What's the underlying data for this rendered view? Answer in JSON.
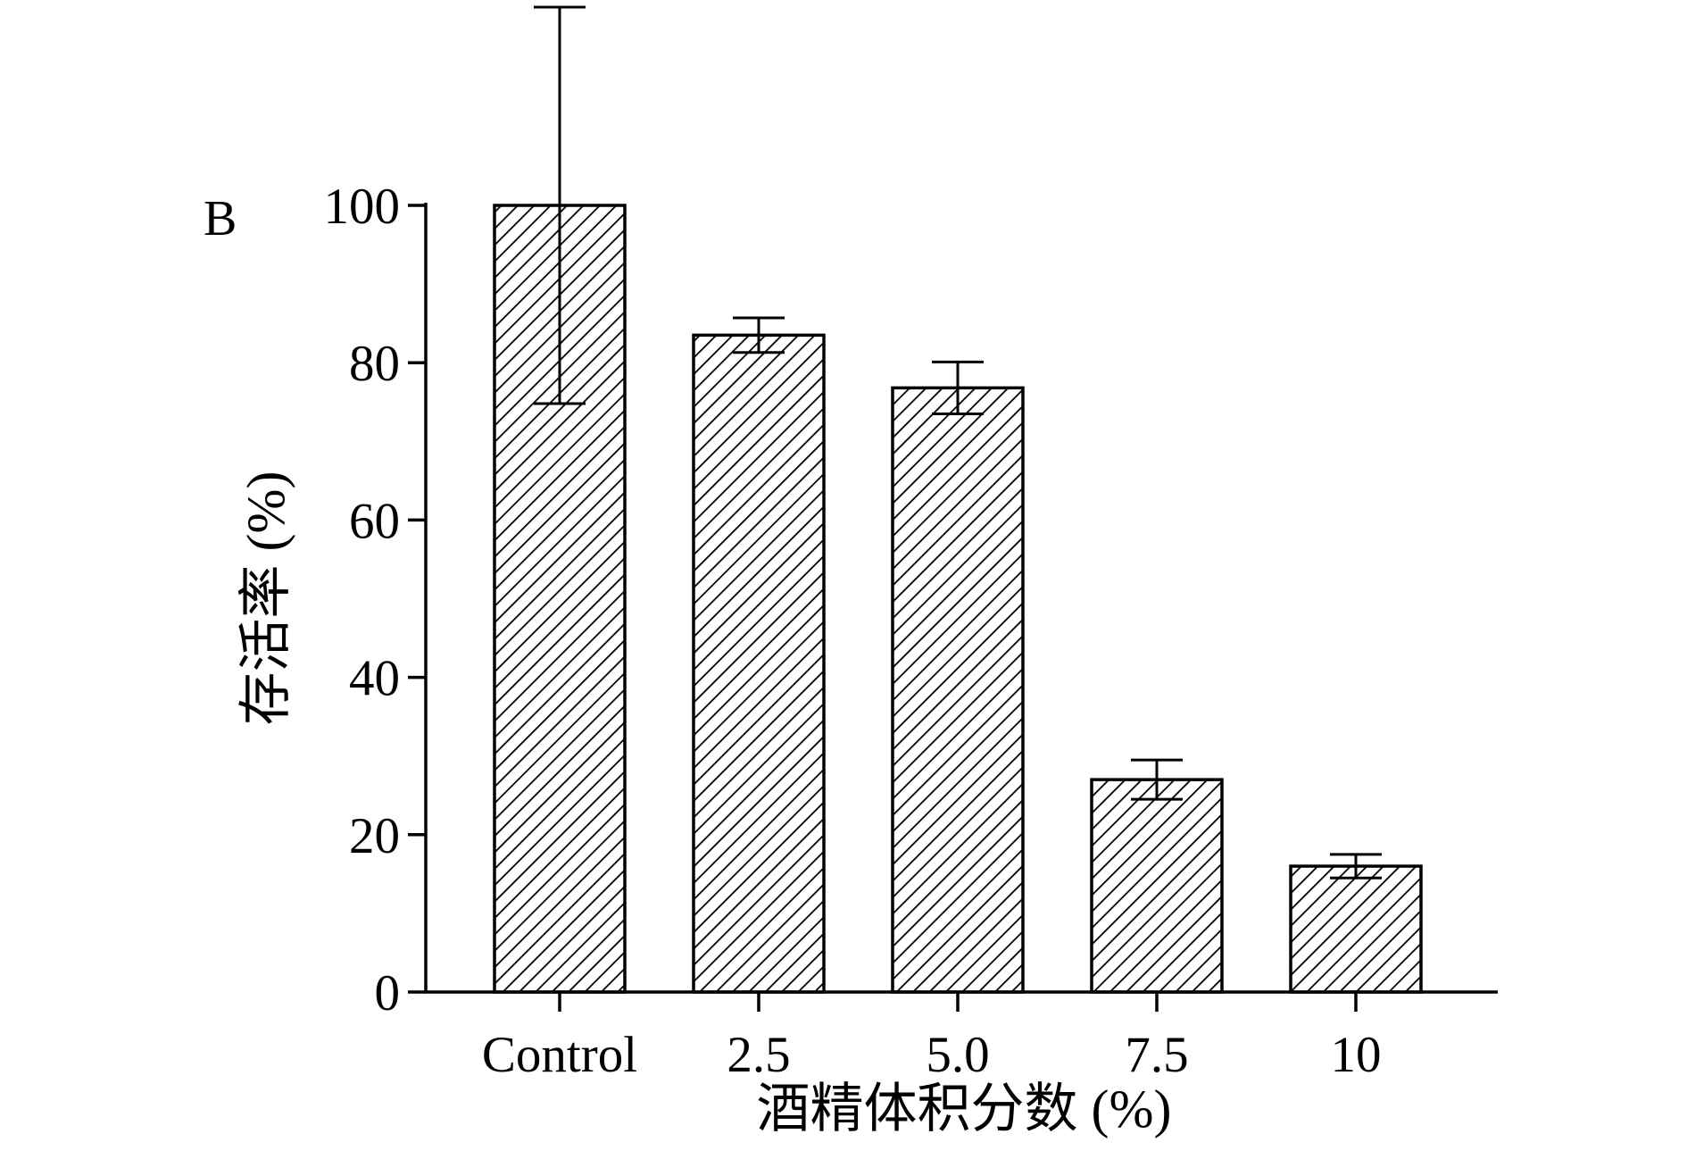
{
  "panel_label": "B",
  "chart_data": {
    "type": "bar",
    "xlabel": "酒精体积分数 (%)",
    "ylabel": "存活率 (%)",
    "categories": [
      "Control",
      "2.5",
      "5.0",
      "7.5",
      "10"
    ],
    "values": [
      100,
      83.5,
      76.8,
      27,
      16
    ],
    "errors": [
      25.2,
      2.2,
      3.3,
      2.5,
      1.5
    ],
    "ylim": [
      0,
      100
    ],
    "yticks": [
      0,
      20,
      40,
      60,
      80,
      100
    ],
    "ytick_labels": [
      "0",
      "20",
      "40",
      "60",
      "80",
      "100"
    ],
    "fill": "diagonal-hatch",
    "colors": {
      "bar_stroke": "#000000",
      "hatch": "#000000",
      "background": "#ffffff"
    },
    "grid": false,
    "legend": "none"
  }
}
